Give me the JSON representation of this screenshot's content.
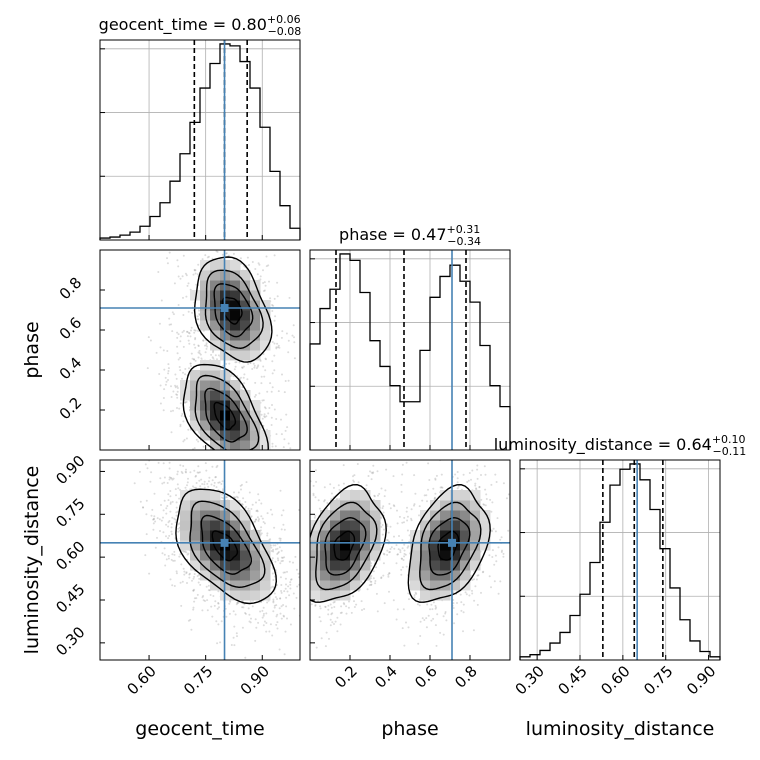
{
  "chart_data": {
    "type": "corner",
    "parameters": [
      "geocent_time",
      "phase",
      "luminosity_distance"
    ],
    "axis_labels": {
      "geocent_time": "geocent_time",
      "phase": "phase",
      "luminosity_distance": "luminosity_distance"
    },
    "ranges": {
      "geocent_time": [
        0.47,
        1.0
      ],
      "phase": [
        0.0,
        1.0
      ],
      "luminosity_distance": [
        0.24,
        0.94
      ]
    },
    "ticks": {
      "geocent_time": {
        "values": [
          0.6,
          0.75,
          0.9
        ],
        "labels": [
          "0.60",
          "0.75",
          "0.90"
        ]
      },
      "phase": {
        "values": [
          0.2,
          0.4,
          0.6,
          0.8
        ],
        "labels": [
          "0.2",
          "0.4",
          "0.6",
          "0.8"
        ]
      },
      "luminosity_distance": {
        "values": [
          0.3,
          0.45,
          0.6,
          0.75,
          0.9
        ],
        "labels": [
          "0.30",
          "0.45",
          "0.60",
          "0.75",
          "0.90"
        ]
      }
    },
    "truths": {
      "geocent_time": 0.8,
      "phase": 0.71,
      "luminosity_distance": 0.65
    },
    "titles": [
      {
        "param": "geocent_time",
        "text": "geocent_time = 0.80",
        "plus": "+0.06",
        "minus": "−0.08"
      },
      {
        "param": "phase",
        "text": "phase = 0.47",
        "plus": "+0.31",
        "minus": "−0.34"
      },
      {
        "param": "luminosity_distance",
        "text": "luminosity_distance = 0.64",
        "plus": "+0.10",
        "minus": "−0.11"
      }
    ],
    "quantiles": {
      "geocent_time": [
        0.72,
        0.8,
        0.86
      ],
      "phase": [
        0.13,
        0.47,
        0.78
      ],
      "luminosity_distance": [
        0.53,
        0.64,
        0.74
      ]
    },
    "histograms": {
      "geocent_time": {
        "edges": [
          0.47,
          0.4965,
          0.523,
          0.5495,
          0.576,
          0.6025,
          0.629,
          0.6555,
          0.682,
          0.7085,
          0.735,
          0.7615,
          0.788,
          0.8145,
          0.841,
          0.8675,
          0.894,
          0.9205,
          0.947,
          0.9735,
          1.0
        ],
        "counts": [
          2,
          3,
          5,
          8,
          14,
          24,
          38,
          60,
          88,
          120,
          155,
          180,
          200,
          198,
          182,
          155,
          115,
          70,
          35,
          12
        ]
      },
      "phase": {
        "edges": [
          0.0,
          0.05,
          0.1,
          0.15,
          0.2,
          0.25,
          0.3,
          0.35,
          0.4,
          0.45,
          0.5,
          0.55,
          0.6,
          0.65,
          0.7,
          0.75,
          0.8,
          0.85,
          0.9,
          0.95,
          1.0
        ],
        "counts": [
          66,
          88,
          100,
          122,
          118,
          98,
          68,
          52,
          40,
          30,
          30,
          62,
          95,
          108,
          115,
          105,
          92,
          65,
          40,
          27
        ]
      },
      "luminosity_distance": {
        "edges": [
          0.24,
          0.275,
          0.31,
          0.345,
          0.38,
          0.415,
          0.45,
          0.485,
          0.52,
          0.555,
          0.59,
          0.625,
          0.66,
          0.695,
          0.73,
          0.765,
          0.8,
          0.835,
          0.87,
          0.905,
          0.94
        ],
        "counts": [
          3,
          5,
          9,
          16,
          26,
          42,
          62,
          92,
          130,
          165,
          180,
          185,
          170,
          142,
          105,
          68,
          38,
          18,
          8,
          3
        ]
      }
    },
    "density_2d": {
      "phase|geocent_time": {
        "modes": [
          {
            "x": 0.82,
            "y": 0.7,
            "sx": 0.05,
            "sy": 0.13,
            "rho": -0.3,
            "w": 1.0
          },
          {
            "x": 0.8,
            "y": 0.17,
            "sx": 0.055,
            "sy": 0.13,
            "rho": -0.5,
            "w": 1.0
          }
        ]
      },
      "luminosity_distance|geocent_time": {
        "modes": [
          {
            "x": 0.8,
            "y": 0.64,
            "sx": 0.065,
            "sy": 0.1,
            "rho": -0.5,
            "w": 1.0
          }
        ]
      },
      "luminosity_distance|phase": {
        "modes": [
          {
            "x": 0.17,
            "y": 0.64,
            "sx": 0.1,
            "sy": 0.1,
            "rho": 0.35,
            "w": 1.0
          },
          {
            "x": 0.69,
            "y": 0.64,
            "sx": 0.1,
            "sy": 0.1,
            "rho": 0.35,
            "w": 1.0
          }
        ]
      }
    },
    "grid": true,
    "colors": {
      "truth": "#4682b4",
      "line": "#000000",
      "grid": "#b0b0b0",
      "scatter": "#9a9a9a"
    }
  }
}
